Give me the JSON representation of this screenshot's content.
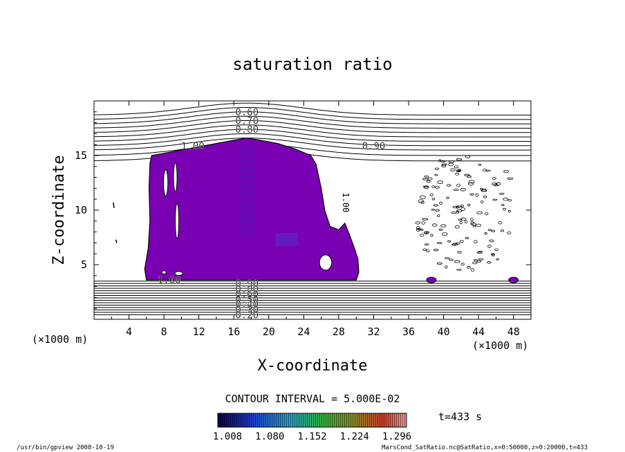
{
  "chart_data": {
    "type": "contour",
    "title": "saturation ratio",
    "xlabel": "X-coordinate",
    "ylabel": "Z-coordinate",
    "x_unit": "(×1000 m)",
    "y_unit": "(×1000 m)",
    "xlim": [
      0,
      50
    ],
    "ylim": [
      0,
      20
    ],
    "x_ticks": [
      "4",
      "8",
      "12",
      "16",
      "20",
      "24",
      "28",
      "32",
      "36",
      "40",
      "44",
      "48"
    ],
    "y_ticks": [
      "5",
      "10",
      "15"
    ],
    "contour_interval_text": "CONTOUR INTERVAL = 5.000E-02",
    "contour_labels_top": [
      {
        "text": "0.60",
        "x": 17.5,
        "y": 19.0
      },
      {
        "text": "0.70",
        "x": 17.5,
        "y": 18.2
      },
      {
        "text": "0.80",
        "x": 17.5,
        "y": 17.4
      },
      {
        "text": "1.00",
        "x": 11.3,
        "y": 15.9
      },
      {
        "text": "0.90",
        "x": 32.0,
        "y": 15.9
      }
    ],
    "contour_labels_bottom": [
      {
        "text": "1.00",
        "x": 8.6,
        "y": 3.6
      },
      {
        "text": "0.90",
        "x": 17.5,
        "y": 3.3
      },
      {
        "text": "0.80",
        "x": 17.5,
        "y": 2.8
      },
      {
        "text": "0.60",
        "x": 17.5,
        "y": 2.3
      },
      {
        "text": "0.50",
        "x": 17.5,
        "y": 1.8
      },
      {
        "text": "0.40",
        "x": 17.5,
        "y": 1.4
      },
      {
        "text": "0.30",
        "x": 17.5,
        "y": 0.9
      },
      {
        "text": "0.20",
        "x": 17.5,
        "y": 0.4
      }
    ],
    "side_label": {
      "text": "1.00",
      "x": 28.5,
      "y": 10.7
    },
    "colorbar": {
      "ticks": [
        "1.008",
        "1.080",
        "1.152",
        "1.224",
        "1.296"
      ],
      "min": 1.008,
      "max": 1.296
    },
    "time_text": "t=433 s",
    "colors": {
      "fill": "#7a00b4",
      "dark_core": "#5a28c8"
    }
  },
  "footer": {
    "left": "/usr/bin/gpview   2008-10-19",
    "right": "MarsCond_SatRatio.nc@SatRatio,x=0:50000,z=0:20000,t=433"
  }
}
